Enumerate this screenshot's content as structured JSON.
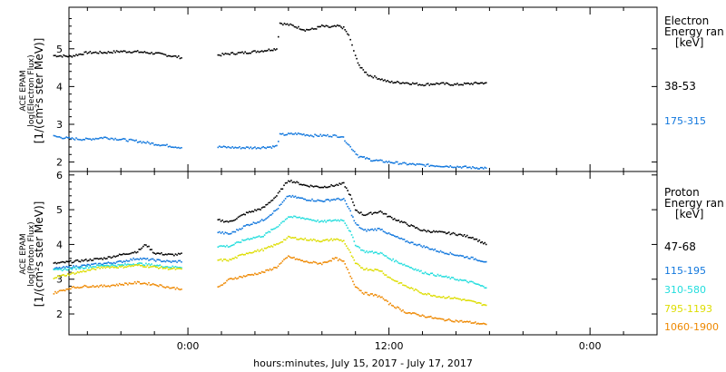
{
  "chart_data": [
    {
      "type": "scatter",
      "panel": "electron",
      "ylabel": [
        "ACE EPAM",
        "log(Electron Flux)",
        "[1/(cm²s ster MeV)]"
      ],
      "ylim": [
        1.75,
        6.1
      ],
      "yticks": [
        "2",
        "3",
        "4",
        "5"
      ],
      "title": [
        "Electron",
        "Energy ran",
        "[keV]"
      ],
      "series": [
        {
          "name": "38-53",
          "color": "#000000",
          "points": [
            {
              "t": -8,
              "y": 4.82
            },
            {
              "t": -7,
              "y": 4.8
            },
            {
              "t": -6.5,
              "y": 4.85
            },
            {
              "t": -6,
              "y": 4.9
            },
            {
              "t": -5,
              "y": 4.9
            },
            {
              "t": -4,
              "y": 4.93
            },
            {
              "t": -3,
              "y": 4.92
            },
            {
              "t": -2,
              "y": 4.88
            },
            {
              "t": -1.5,
              "y": 4.85
            },
            {
              "t": -0.3,
              "y": 4.76
            },
            {
              "t": 1.8,
              "y": 4.83
            },
            {
              "t": 2.5,
              "y": 4.87
            },
            {
              "t": 3.5,
              "y": 4.9
            },
            {
              "t": 4.5,
              "y": 4.95
            },
            {
              "t": 5,
              "y": 4.98
            },
            {
              "t": 5.3,
              "y": 5.0
            },
            {
              "t": 5.5,
              "y": 5.68
            },
            {
              "t": 6.2,
              "y": 5.62
            },
            {
              "t": 7,
              "y": 5.5
            },
            {
              "t": 7.5,
              "y": 5.52
            },
            {
              "t": 8,
              "y": 5.6
            },
            {
              "t": 8.5,
              "y": 5.57
            },
            {
              "t": 9,
              "y": 5.6
            },
            {
              "t": 9.3,
              "y": 5.55
            },
            {
              "t": 9.6,
              "y": 5.35
            },
            {
              "t": 9.8,
              "y": 5.1
            },
            {
              "t": 10,
              "y": 4.8
            },
            {
              "t": 10.3,
              "y": 4.5
            },
            {
              "t": 10.8,
              "y": 4.3
            },
            {
              "t": 11.5,
              "y": 4.2
            },
            {
              "t": 12,
              "y": 4.12
            },
            {
              "t": 13,
              "y": 4.1
            },
            {
              "t": 14,
              "y": 4.05
            },
            {
              "t": 15,
              "y": 4.08
            },
            {
              "t": 16,
              "y": 4.05
            },
            {
              "t": 17,
              "y": 4.08
            },
            {
              "t": 17.8,
              "y": 4.1
            }
          ]
        },
        {
          "name": "175-315",
          "color": "#1177dd",
          "points": [
            {
              "t": -8,
              "y": 2.68
            },
            {
              "t": -7,
              "y": 2.62
            },
            {
              "t": -6,
              "y": 2.6
            },
            {
              "t": -5,
              "y": 2.65
            },
            {
              "t": -4,
              "y": 2.6
            },
            {
              "t": -3,
              "y": 2.55
            },
            {
              "t": -2,
              "y": 2.48
            },
            {
              "t": -1,
              "y": 2.42
            },
            {
              "t": -0.3,
              "y": 2.38
            },
            {
              "t": 1.8,
              "y": 2.4
            },
            {
              "t": 3,
              "y": 2.38
            },
            {
              "t": 4,
              "y": 2.38
            },
            {
              "t": 5,
              "y": 2.4
            },
            {
              "t": 5.3,
              "y": 2.42
            },
            {
              "t": 5.5,
              "y": 2.72
            },
            {
              "t": 6.5,
              "y": 2.75
            },
            {
              "t": 7.5,
              "y": 2.7
            },
            {
              "t": 8.5,
              "y": 2.7
            },
            {
              "t": 9.2,
              "y": 2.68
            },
            {
              "t": 9.7,
              "y": 2.4
            },
            {
              "t": 10.2,
              "y": 2.15
            },
            {
              "t": 11,
              "y": 2.05
            },
            {
              "t": 12,
              "y": 2.0
            },
            {
              "t": 13,
              "y": 1.95
            },
            {
              "t": 14,
              "y": 1.92
            },
            {
              "t": 15,
              "y": 1.9
            },
            {
              "t": 16,
              "y": 1.88
            },
            {
              "t": 17,
              "y": 1.85
            },
            {
              "t": 17.8,
              "y": 1.84
            }
          ]
        }
      ]
    },
    {
      "type": "scatter",
      "panel": "proton",
      "ylabel": [
        "ACE EPAM",
        "log(Proton Flux)",
        "[1/(cm²s ster MeV)]"
      ],
      "ylim": [
        1.4,
        6.1
      ],
      "yticks": [
        "2",
        "3",
        "4",
        "5",
        "6"
      ],
      "title": [
        "Proton",
        "Energy ran",
        "[keV]"
      ],
      "series": [
        {
          "name": "47-68",
          "color": "#000000",
          "points": [
            {
              "t": -8,
              "y": 3.45
            },
            {
              "t": -7,
              "y": 3.5
            },
            {
              "t": -6,
              "y": 3.55
            },
            {
              "t": -5,
              "y": 3.6
            },
            {
              "t": -4,
              "y": 3.7
            },
            {
              "t": -3,
              "y": 3.8
            },
            {
              "t": -2.5,
              "y": 4.0
            },
            {
              "t": -2,
              "y": 3.75
            },
            {
              "t": -1,
              "y": 3.7
            },
            {
              "t": -0.3,
              "y": 3.72
            },
            {
              "t": 1.8,
              "y": 4.7
            },
            {
              "t": 2.5,
              "y": 4.65
            },
            {
              "t": 3.5,
              "y": 4.9
            },
            {
              "t": 4.5,
              "y": 5.05
            },
            {
              "t": 5.3,
              "y": 5.4
            },
            {
              "t": 6,
              "y": 5.85
            },
            {
              "t": 7,
              "y": 5.7
            },
            {
              "t": 8,
              "y": 5.65
            },
            {
              "t": 8.8,
              "y": 5.7
            },
            {
              "t": 9.3,
              "y": 5.75
            },
            {
              "t": 9.7,
              "y": 5.4
            },
            {
              "t": 10,
              "y": 5.0
            },
            {
              "t": 10.5,
              "y": 4.85
            },
            {
              "t": 11.5,
              "y": 4.95
            },
            {
              "t": 12,
              "y": 4.8
            },
            {
              "t": 13,
              "y": 4.6
            },
            {
              "t": 14,
              "y": 4.4
            },
            {
              "t": 15,
              "y": 4.35
            },
            {
              "t": 16,
              "y": 4.3
            },
            {
              "t": 17,
              "y": 4.2
            },
            {
              "t": 17.8,
              "y": 4.0
            }
          ]
        },
        {
          "name": "115-195",
          "color": "#1177dd",
          "points": [
            {
              "t": -8,
              "y": 3.3
            },
            {
              "t": -7,
              "y": 3.35
            },
            {
              "t": -6,
              "y": 3.4
            },
            {
              "t": -5,
              "y": 3.45
            },
            {
              "t": -4,
              "y": 3.5
            },
            {
              "t": -3,
              "y": 3.6
            },
            {
              "t": -2,
              "y": 3.55
            },
            {
              "t": -1,
              "y": 3.5
            },
            {
              "t": -0.3,
              "y": 3.52
            },
            {
              "t": 1.8,
              "y": 4.35
            },
            {
              "t": 2.5,
              "y": 4.3
            },
            {
              "t": 3.5,
              "y": 4.55
            },
            {
              "t": 4.5,
              "y": 4.7
            },
            {
              "t": 5.3,
              "y": 5.0
            },
            {
              "t": 6,
              "y": 5.4
            },
            {
              "t": 7,
              "y": 5.3
            },
            {
              "t": 8,
              "y": 5.25
            },
            {
              "t": 8.8,
              "y": 5.3
            },
            {
              "t": 9.3,
              "y": 5.3
            },
            {
              "t": 9.7,
              "y": 4.95
            },
            {
              "t": 10,
              "y": 4.6
            },
            {
              "t": 10.5,
              "y": 4.4
            },
            {
              "t": 11.5,
              "y": 4.45
            },
            {
              "t": 12,
              "y": 4.3
            },
            {
              "t": 13,
              "y": 4.1
            },
            {
              "t": 14,
              "y": 3.95
            },
            {
              "t": 15,
              "y": 3.8
            },
            {
              "t": 16,
              "y": 3.7
            },
            {
              "t": 17,
              "y": 3.6
            },
            {
              "t": 17.8,
              "y": 3.5
            }
          ]
        },
        {
          "name": "310-580",
          "color": "#22dddd",
          "points": [
            {
              "t": -8,
              "y": 3.25
            },
            {
              "t": -7,
              "y": 3.3
            },
            {
              "t": -6,
              "y": 3.35
            },
            {
              "t": -5,
              "y": 3.4
            },
            {
              "t": -4,
              "y": 3.4
            },
            {
              "t": -3,
              "y": 3.45
            },
            {
              "t": -2,
              "y": 3.4
            },
            {
              "t": -1,
              "y": 3.35
            },
            {
              "t": -0.3,
              "y": 3.35
            },
            {
              "t": 1.8,
              "y": 3.95
            },
            {
              "t": 2.5,
              "y": 3.95
            },
            {
              "t": 3.5,
              "y": 4.15
            },
            {
              "t": 4.5,
              "y": 4.25
            },
            {
              "t": 5.3,
              "y": 4.5
            },
            {
              "t": 6,
              "y": 4.8
            },
            {
              "t": 7,
              "y": 4.75
            },
            {
              "t": 8,
              "y": 4.65
            },
            {
              "t": 8.8,
              "y": 4.7
            },
            {
              "t": 9.3,
              "y": 4.7
            },
            {
              "t": 9.7,
              "y": 4.35
            },
            {
              "t": 10,
              "y": 4.0
            },
            {
              "t": 10.5,
              "y": 3.8
            },
            {
              "t": 11.5,
              "y": 3.75
            },
            {
              "t": 12,
              "y": 3.6
            },
            {
              "t": 13,
              "y": 3.4
            },
            {
              "t": 14,
              "y": 3.2
            },
            {
              "t": 15,
              "y": 3.1
            },
            {
              "t": 16,
              "y": 3.0
            },
            {
              "t": 17,
              "y": 2.9
            },
            {
              "t": 17.8,
              "y": 2.75
            }
          ]
        },
        {
          "name": "795-1193",
          "color": "#dddd00",
          "points": [
            {
              "t": -8,
              "y": 3.05
            },
            {
              "t": -7,
              "y": 3.15
            },
            {
              "t": -6,
              "y": 3.25
            },
            {
              "t": -5,
              "y": 3.35
            },
            {
              "t": -4,
              "y": 3.35
            },
            {
              "t": -3,
              "y": 3.4
            },
            {
              "t": -2,
              "y": 3.35
            },
            {
              "t": -1,
              "y": 3.3
            },
            {
              "t": -0.3,
              "y": 3.28
            },
            {
              "t": 1.8,
              "y": 3.55
            },
            {
              "t": 2.5,
              "y": 3.55
            },
            {
              "t": 3.5,
              "y": 3.75
            },
            {
              "t": 4.5,
              "y": 3.85
            },
            {
              "t": 5.3,
              "y": 4.0
            },
            {
              "t": 6,
              "y": 4.2
            },
            {
              "t": 7,
              "y": 4.15
            },
            {
              "t": 8,
              "y": 4.1
            },
            {
              "t": 8.8,
              "y": 4.15
            },
            {
              "t": 9.3,
              "y": 4.1
            },
            {
              "t": 9.7,
              "y": 3.75
            },
            {
              "t": 10,
              "y": 3.45
            },
            {
              "t": 10.5,
              "y": 3.3
            },
            {
              "t": 11.5,
              "y": 3.25
            },
            {
              "t": 12,
              "y": 3.05
            },
            {
              "t": 13,
              "y": 2.8
            },
            {
              "t": 14,
              "y": 2.6
            },
            {
              "t": 15,
              "y": 2.5
            },
            {
              "t": 16,
              "y": 2.45
            },
            {
              "t": 17,
              "y": 2.35
            },
            {
              "t": 17.8,
              "y": 2.25
            }
          ]
        },
        {
          "name": "1060-1900",
          "color": "#ee8800",
          "points": [
            {
              "t": -8,
              "y": 2.6
            },
            {
              "t": -7,
              "y": 2.75
            },
            {
              "t": -6,
              "y": 2.8
            },
            {
              "t": -5,
              "y": 2.8
            },
            {
              "t": -4,
              "y": 2.85
            },
            {
              "t": -3,
              "y": 2.9
            },
            {
              "t": -2,
              "y": 2.85
            },
            {
              "t": -1,
              "y": 2.75
            },
            {
              "t": -0.3,
              "y": 2.72
            },
            {
              "t": 1.8,
              "y": 2.75
            },
            {
              "t": 2.5,
              "y": 3.0
            },
            {
              "t": 3.5,
              "y": 3.1
            },
            {
              "t": 4.5,
              "y": 3.2
            },
            {
              "t": 5.3,
              "y": 3.35
            },
            {
              "t": 6,
              "y": 3.65
            },
            {
              "t": 7,
              "y": 3.5
            },
            {
              "t": 8,
              "y": 3.45
            },
            {
              "t": 8.8,
              "y": 3.6
            },
            {
              "t": 9.3,
              "y": 3.5
            },
            {
              "t": 9.7,
              "y": 3.1
            },
            {
              "t": 10,
              "y": 2.8
            },
            {
              "t": 10.5,
              "y": 2.6
            },
            {
              "t": 11.5,
              "y": 2.5
            },
            {
              "t": 12,
              "y": 2.3
            },
            {
              "t": 13,
              "y": 2.05
            },
            {
              "t": 14,
              "y": 1.95
            },
            {
              "t": 15,
              "y": 1.85
            },
            {
              "t": 16,
              "y": 1.8
            },
            {
              "t": 17,
              "y": 1.75
            },
            {
              "t": 17.8,
              "y": 1.7
            }
          ]
        }
      ]
    }
  ],
  "xaxis": {
    "label": "hours:minutes, July 15, 2017 - July 17, 2017",
    "ticks": [
      {
        "t": 0,
        "label": "0:00"
      },
      {
        "t": 12,
        "label": "12:00"
      },
      {
        "t": 24,
        "label": "0:00"
      }
    ],
    "xlim": [
      -7.1,
      28.0
    ]
  }
}
